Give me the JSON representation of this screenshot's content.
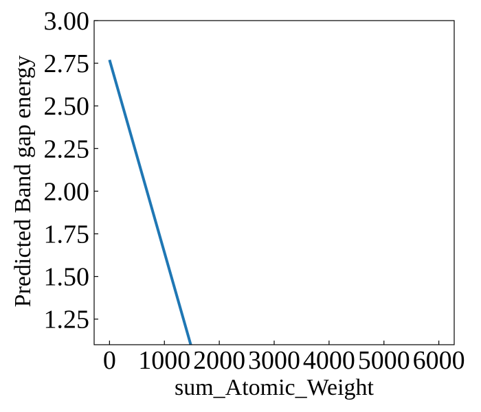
{
  "chart_data": {
    "type": "line",
    "xlabel": "sum_Atomic_Weight",
    "ylabel": "Predicted Band gap energy",
    "xlim": [
      -280,
      6280
    ],
    "ylim": [
      1.1,
      3.0
    ],
    "xticks": [
      0,
      1000,
      2000,
      3000,
      4000,
      5000,
      6000
    ],
    "xtick_labels": [
      "0",
      "1000",
      "2000",
      "3000",
      "4000",
      "5000",
      "6000"
    ],
    "yticks": [
      1.25,
      1.5,
      1.75,
      2.0,
      2.25,
      2.5,
      2.75,
      3.0
    ],
    "ytick_labels": [
      "1.25",
      "1.50",
      "1.75",
      "2.00",
      "2.25",
      "2.50",
      "2.75",
      "3.00"
    ],
    "grid": false,
    "series": [
      {
        "color": "#1f77b4",
        "x": [
          0,
          1480
        ],
        "y": [
          2.77,
          1.1
        ]
      }
    ]
  }
}
